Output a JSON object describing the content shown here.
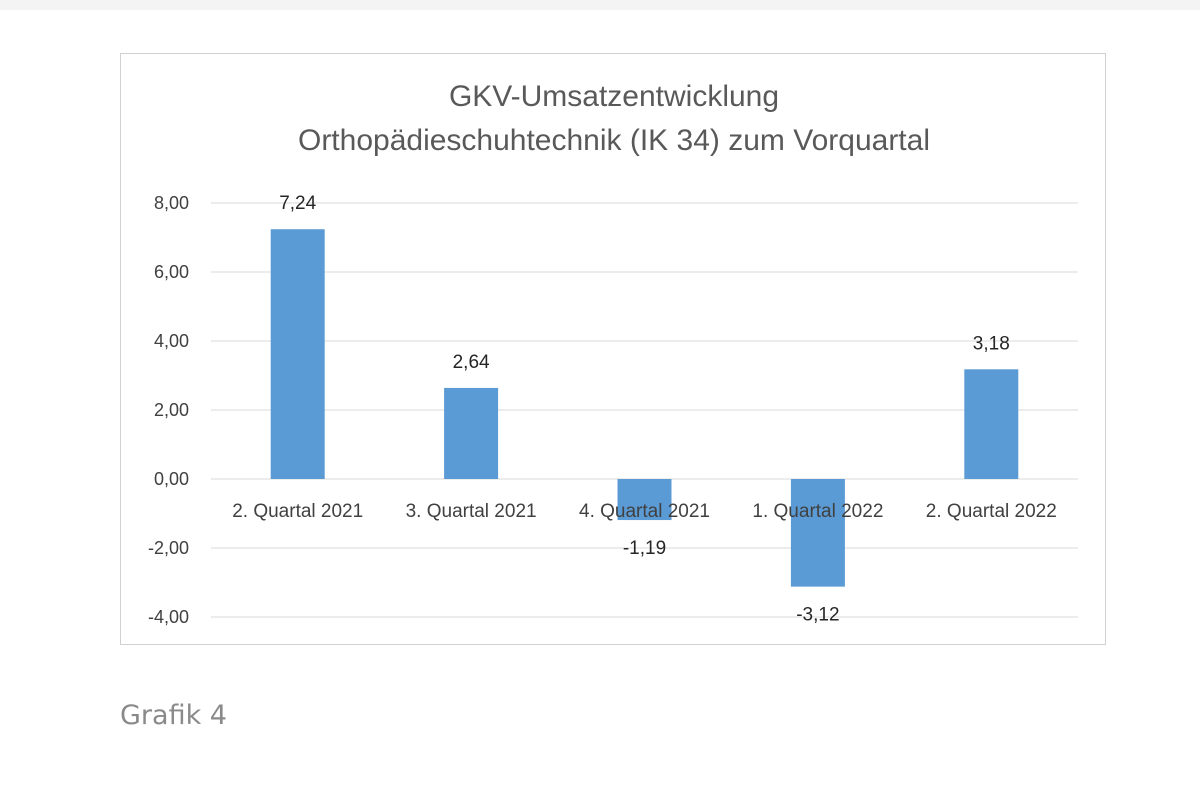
{
  "caption": "Grafik 4",
  "chart_data": {
    "type": "bar",
    "title": [
      "GKV-Umsatzentwicklung",
      "Orthopädieschuhtechnik (IK 34) zum Vorquartal"
    ],
    "categories": [
      "2. Quartal 2021",
      "3. Quartal 2021",
      "4. Quartal 2021",
      "1. Quartal 2022",
      "2. Quartal 2022"
    ],
    "values": [
      7.24,
      2.64,
      -1.19,
      -3.12,
      3.18
    ],
    "value_labels": [
      "7,24",
      "2,64",
      "-1,19",
      "-3,12",
      "3,18"
    ],
    "ylim": [
      -4,
      8
    ],
    "yticks": [
      8,
      6,
      4,
      2,
      0,
      -2,
      -4
    ],
    "ytick_labels": [
      "8,00",
      "6,00",
      "4,00",
      "2,00",
      "0,00",
      "-2,00",
      "-4,00"
    ],
    "grid": true,
    "bar_color": "#5b9bd5"
  }
}
